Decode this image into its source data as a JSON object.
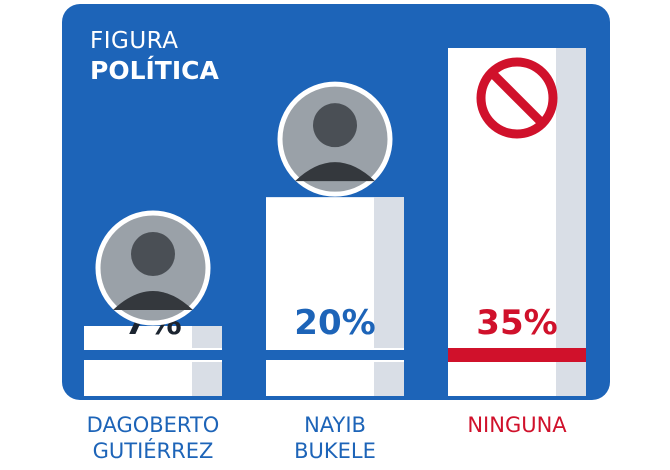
{
  "header": {
    "line1": "FIGURA",
    "line2": "POLÍTICA"
  },
  "colors": {
    "panel": "#1d64b8",
    "blue_text": "#1d64b8",
    "red": "#d0112b",
    "white": "#ffffff",
    "shade": "#d9dee6"
  },
  "chart_data": {
    "type": "bar",
    "title": "FIGURA POLÍTICA",
    "categories": [
      "DAGOBERTO GUTIÉRREZ",
      "NAYIB BUKELE",
      "NINGUNA"
    ],
    "category_lines": [
      [
        "DAGOBERTO",
        "GUTIÉRREZ"
      ],
      [
        "NAYIB",
        "BUKELE"
      ],
      [
        "NINGUNA"
      ]
    ],
    "values": [
      7,
      20,
      35
    ],
    "value_labels": [
      "7%",
      "20%",
      "35%"
    ],
    "label_colors": [
      "#1d64b8",
      "#1d64b8",
      "#d0112b"
    ],
    "icons": [
      "person-portrait-icon",
      "person-portrait-icon",
      "prohibited-icon"
    ],
    "ylim": [
      0,
      35
    ]
  }
}
